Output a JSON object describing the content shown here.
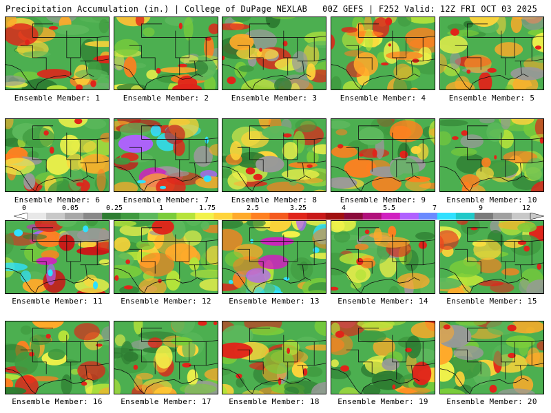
{
  "header": {
    "left": "Precipitation Accumulation (in.) | College of DuPage NEXLAB",
    "right": "00Z GEFS | F252 Valid: 12Z FRI OCT 03 2025"
  },
  "colorbar": {
    "labels": [
      "0",
      "0.05",
      "0.25",
      "1",
      "1.75",
      "2.5",
      "3.25",
      "4",
      "5.5",
      "7",
      "9",
      "12"
    ],
    "colors": [
      "#e8e8e8",
      "#c8c8c8",
      "#a8a8a8",
      "#888888",
      "#2e7d32",
      "#3f9a3f",
      "#5cb85c",
      "#7acc3a",
      "#b6e33a",
      "#f2f24a",
      "#ffd43a",
      "#ffaa2a",
      "#ff8020",
      "#f45a1e",
      "#e0241a",
      "#c81818",
      "#a01010",
      "#8a0a3a",
      "#b0107a",
      "#d020c0",
      "#b060ff",
      "#6a8aff",
      "#30e0ff",
      "#20c8c8",
      "#7a7a7a",
      "#a0a0a0",
      "#c8c8c8"
    ]
  },
  "members": [
    {
      "label": "Ensemble Member: 1"
    },
    {
      "label": "Ensemble Member: 2"
    },
    {
      "label": "Ensemble Member: 3"
    },
    {
      "label": "Ensemble Member: 4"
    },
    {
      "label": "Ensemble Member: 5"
    },
    {
      "label": "Ensemble Member: 6"
    },
    {
      "label": "Ensemble Member: 7"
    },
    {
      "label": "Ensemble Member: 8"
    },
    {
      "label": "Ensemble Member: 9"
    },
    {
      "label": "Ensemble Member: 10"
    },
    {
      "label": "Ensemble Member: 11"
    },
    {
      "label": "Ensemble Member: 12"
    },
    {
      "label": "Ensemble Member: 13"
    },
    {
      "label": "Ensemble Member: 14"
    },
    {
      "label": "Ensemble Member: 15"
    },
    {
      "label": "Ensemble Member: 16"
    },
    {
      "label": "Ensemble Member: 17"
    },
    {
      "label": "Ensemble Member: 18"
    },
    {
      "label": "Ensemble Member: 19"
    },
    {
      "label": "Ensemble Member: 20"
    }
  ]
}
